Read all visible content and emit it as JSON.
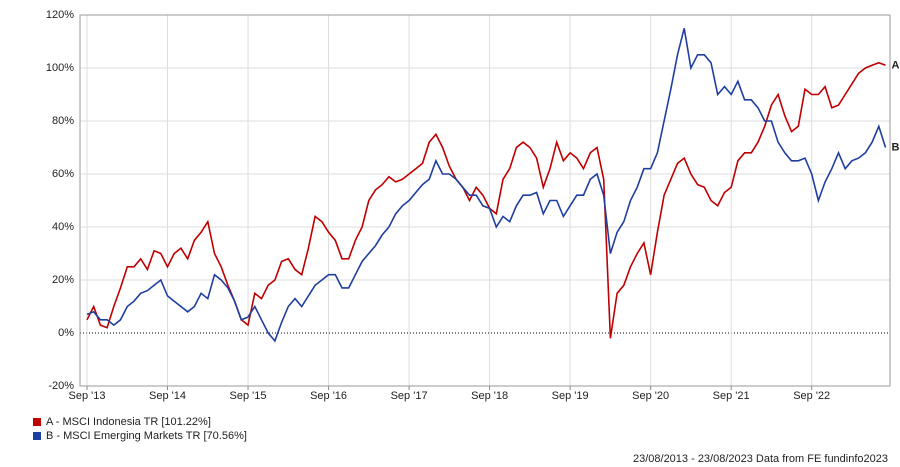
{
  "chart_data": {
    "type": "line",
    "categories": [
      "Sep '13",
      null,
      null,
      null,
      null,
      null,
      null,
      null,
      null,
      null,
      null,
      null,
      "Sep '14",
      null,
      null,
      null,
      null,
      null,
      null,
      null,
      null,
      null,
      null,
      null,
      "Sep '15",
      null,
      null,
      null,
      null,
      null,
      null,
      null,
      null,
      null,
      null,
      null,
      "Sep '16",
      null,
      null,
      null,
      null,
      null,
      null,
      null,
      null,
      null,
      null,
      null,
      "Sep '17",
      null,
      null,
      null,
      null,
      null,
      null,
      null,
      null,
      null,
      null,
      null,
      "Sep '18",
      null,
      null,
      null,
      null,
      null,
      null,
      null,
      null,
      null,
      null,
      null,
      "Sep '19",
      null,
      null,
      null,
      null,
      null,
      null,
      null,
      null,
      null,
      null,
      null,
      "Sep '20",
      null,
      null,
      null,
      null,
      null,
      null,
      null,
      null,
      null,
      null,
      null,
      "Sep '21",
      null,
      null,
      null,
      null,
      null,
      null,
      null,
      null,
      null,
      null,
      null,
      "Sep '22",
      null,
      null,
      null,
      null,
      null,
      null,
      null,
      null,
      null,
      null,
      null
    ],
    "series": [
      {
        "name": "A - MSCI Indonesia TR [101.22%]",
        "end_label": "A",
        "color": "#c00000",
        "values": [
          5,
          10,
          3,
          2,
          10,
          17,
          25,
          25,
          28,
          24,
          31,
          30,
          25,
          30,
          32,
          28,
          35,
          38,
          42,
          30,
          25,
          18,
          12,
          5,
          3,
          15,
          13,
          18,
          20,
          27,
          28,
          24,
          22,
          32,
          44,
          42,
          38,
          35,
          28,
          28,
          35,
          40,
          50,
          54,
          56,
          59,
          57,
          58,
          60,
          62,
          64,
          72,
          75,
          70,
          63,
          58,
          55,
          50,
          55,
          52,
          47,
          45,
          58,
          62,
          70,
          72,
          70,
          66,
          55,
          62,
          72,
          65,
          68,
          66,
          62,
          68,
          70,
          58,
          -2,
          15,
          18,
          25,
          30,
          34,
          22,
          38,
          52,
          58,
          64,
          66,
          60,
          56,
          55,
          50,
          48,
          53,
          55,
          65,
          68,
          68,
          72,
          78,
          86,
          90,
          82,
          76,
          78,
          92,
          90,
          90,
          93,
          85,
          86,
          90,
          94,
          98,
          100,
          101,
          102,
          101
        ]
      },
      {
        "name": "B - MSCI Emerging Markets TR [70.56%]",
        "end_label": "B",
        "color": "#1f3f9f",
        "values": [
          7,
          8,
          5,
          5,
          3,
          5,
          10,
          12,
          15,
          16,
          18,
          20,
          14,
          12,
          10,
          8,
          10,
          15,
          13,
          22,
          20,
          17,
          12,
          5,
          6,
          10,
          5,
          0,
          -3,
          4,
          10,
          13,
          10,
          14,
          18,
          20,
          22,
          22,
          17,
          17,
          22,
          27,
          30,
          33,
          37,
          40,
          45,
          48,
          50,
          53,
          56,
          58,
          65,
          60,
          60,
          58,
          55,
          52,
          52,
          48,
          47,
          40,
          44,
          42,
          48,
          52,
          52,
          53,
          45,
          50,
          50,
          44,
          48,
          52,
          52,
          58,
          60,
          52,
          30,
          38,
          42,
          50,
          55,
          62,
          62,
          68,
          80,
          92,
          105,
          115,
          100,
          105,
          105,
          102,
          90,
          93,
          90,
          95,
          88,
          88,
          85,
          80,
          80,
          72,
          68,
          65,
          65,
          66,
          60,
          50,
          57,
          62,
          68,
          62,
          65,
          66,
          68,
          72,
          78,
          70
        ]
      }
    ],
    "ylim": [
      -20,
      120
    ],
    "yticks": [
      {
        "value": -20,
        "label": "-20%"
      },
      {
        "value": 0,
        "label": "0%"
      },
      {
        "value": 20,
        "label": "20%"
      },
      {
        "value": 40,
        "label": "40%"
      },
      {
        "value": 60,
        "label": "60%"
      },
      {
        "value": 80,
        "label": "80%"
      },
      {
        "value": 100,
        "label": "100%"
      },
      {
        "value": 120,
        "label": "120%"
      }
    ],
    "grid": true,
    "footer": "23/08/2013 - 23/08/2023 Data from FE fundinfo2023"
  }
}
